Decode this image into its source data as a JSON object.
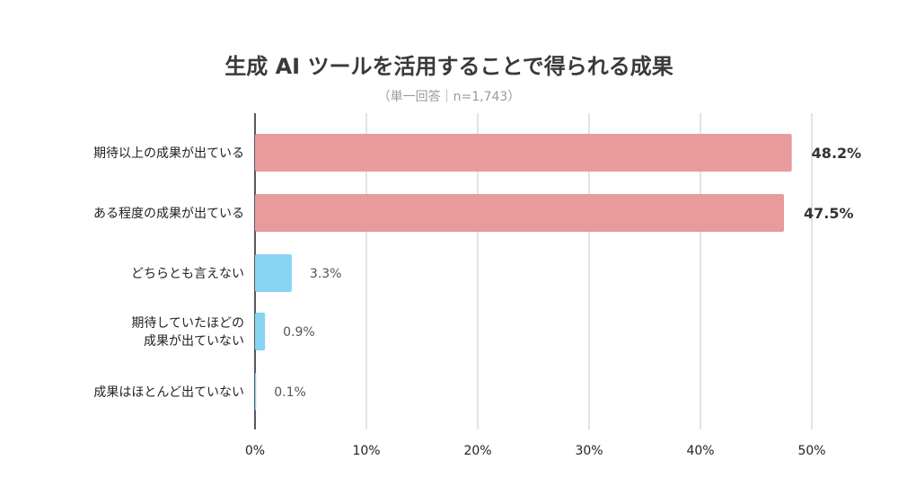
{
  "chart_data": {
    "type": "bar",
    "orientation": "horizontal",
    "title": "生成 AI ツールを活用することで得られる成果",
    "subtitle": "（単一回答｜n=1,743）",
    "xlabel": "",
    "ylabel": "",
    "categories": [
      [
        "期待以上の成果が出ている"
      ],
      [
        "ある程度の成果が出ている"
      ],
      [
        "どちらとも言えない"
      ],
      [
        "期待していたほどの",
        "成果が出ていない"
      ],
      [
        "成果はほとんど出ていない"
      ]
    ],
    "values": [
      48.2,
      47.5,
      3.3,
      0.9,
      0.1
    ],
    "value_labels": [
      "48.2%",
      "47.5%",
      "3.3%",
      "0.9%",
      "0.1%"
    ],
    "bar_colors": [
      "#e99a9a",
      "#e99a9a",
      "#86d4f1",
      "#86d4f1",
      "#86d4f1"
    ],
    "emphasized": [
      true,
      true,
      false,
      false,
      false
    ],
    "xlim": [
      0,
      50
    ],
    "xticks": [
      "0%",
      "10%",
      "20%",
      "30%",
      "40%",
      "50%"
    ],
    "grid": true,
    "gridline_color": "#d0d0d0",
    "axis_color": "#222222"
  }
}
